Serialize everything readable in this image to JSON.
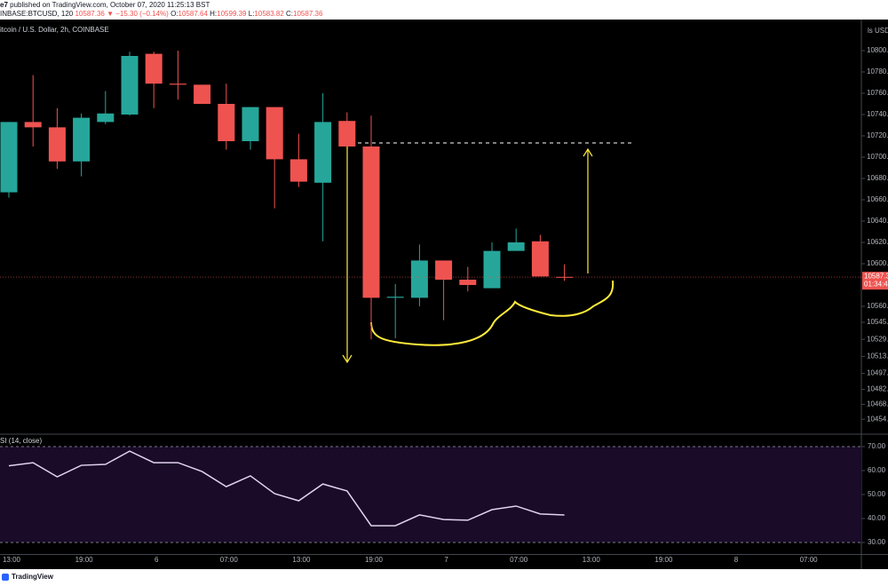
{
  "header": {
    "author": "e7",
    "published": "published on TradingView.com, October 07, 2020 11:25:13 BST",
    "symbol": "INBASE:BTCUSD, 120",
    "last": "10587.36",
    "change": "▼ −15.30 (−0.14%)",
    "ohlc": [
      {
        "label": "O:",
        "value": "10587.64"
      },
      {
        "label": "H:",
        "value": "10599.39"
      },
      {
        "label": "L:",
        "value": "10583.82"
      },
      {
        "label": "C:",
        "value": "10587.36"
      }
    ]
  },
  "chart_data": {
    "type": "candlestick",
    "title": "itcoin / U.S. Dollar, 2h, COINBASE",
    "currency": "ls USD",
    "up_color": "#26a69a",
    "down_color": "#ef5350",
    "open": [
      10667,
      10733,
      10728,
      10696,
      10733,
      10740,
      10797,
      10769,
      10768,
      10750,
      10715,
      10747,
      10698,
      10676,
      10734,
      10710,
      10568,
      10568,
      10603,
      10585,
      10577,
      10612,
      10621,
      10587.64
    ],
    "high": [
      10733,
      10777,
      10746,
      10741,
      10762,
      10799,
      10799,
      10800,
      10768,
      10769,
      10747,
      10747,
      10722,
      10760,
      10742,
      10739,
      10581,
      10618,
      10603,
      10597,
      10620,
      10633,
      10627,
      10599.39
    ],
    "low": [
      10662,
      10710,
      10689,
      10682,
      10731,
      10739,
      10746,
      10754,
      10750,
      10707,
      10707,
      10652,
      10672,
      10621,
      10710,
      10529,
      10530,
      10560,
      10547,
      10574,
      10577,
      10612,
      10588,
      10583.82
    ],
    "close": [
      10733,
      10728,
      10696,
      10737,
      10741,
      10795,
      10769,
      10768,
      10750,
      10715,
      10747,
      10698,
      10677,
      10733,
      10710,
      10568,
      10569,
      10603,
      10585,
      10580,
      10612,
      10620,
      10588,
      10587.36
    ],
    "ylim": [
      10440,
      10830
    ],
    "yticks": [
      {
        "value": 10800,
        "label": "10800.00"
      },
      {
        "value": 10780,
        "label": "10780.00"
      },
      {
        "value": 10760,
        "label": "10760.00"
      },
      {
        "value": 10740,
        "label": "10740.00"
      },
      {
        "value": 10720,
        "label": "10720.00"
      },
      {
        "value": 10700,
        "label": "10700.00"
      },
      {
        "value": 10680,
        "label": "10680.00"
      },
      {
        "value": 10660,
        "label": "10660.00"
      },
      {
        "value": 10640,
        "label": "10640.00"
      },
      {
        "value": 10620,
        "label": "10620.00"
      },
      {
        "value": 10600,
        "label": "10600.00"
      },
      {
        "value": 10560,
        "label": "10560.00"
      },
      {
        "value": 10545,
        "label": "10545.00"
      },
      {
        "value": 10529,
        "label": "10529.00"
      },
      {
        "value": 10513,
        "label": "10513.00"
      },
      {
        "value": 10497,
        "label": "10497.00"
      },
      {
        "value": 10482,
        "label": "10482.00"
      },
      {
        "value": 10468,
        "label": "10468.00"
      },
      {
        "value": 10454,
        "label": "10454.00"
      }
    ],
    "price_label": {
      "value": 10587.36,
      "label": "10587.3",
      "countdown": "01:34:4"
    },
    "x_axis_labels": [
      "13:00",
      "19:00",
      "6",
      "07:00",
      "13:00",
      "19:00",
      "7",
      "07:00",
      "13:00",
      "19:00",
      "8",
      "07:00"
    ],
    "rsi": {
      "title": "SI (14, close)",
      "color": "#e1d4ef",
      "values": [
        62,
        63.3,
        57.4,
        62.2,
        62.6,
        68.1,
        63.3,
        63.3,
        59.6,
        53.3,
        57.8,
        50.4,
        47.4,
        54.4,
        51.5,
        37,
        37,
        41.5,
        39.6,
        39.3,
        43.7,
        45.2,
        41.9,
        41.5
      ],
      "ylim": [
        25,
        75
      ],
      "yticks": [
        {
          "value": 70,
          "label": "70.00"
        },
        {
          "value": 60,
          "label": "60.00"
        },
        {
          "value": 50,
          "label": "50.00"
        },
        {
          "value": 40,
          "label": "40.00"
        },
        {
          "value": 30,
          "label": "30.00"
        }
      ]
    }
  },
  "footer": {
    "brand": "TradingView"
  }
}
